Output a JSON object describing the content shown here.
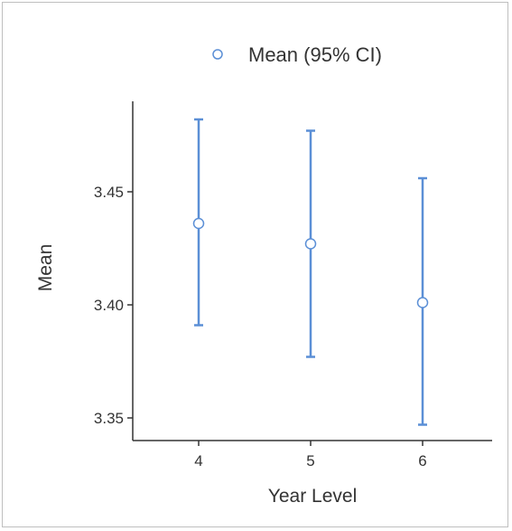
{
  "chart_data": {
    "type": "scatter",
    "xlabel": "Year Level",
    "ylabel": "Mean",
    "categories": [
      "4",
      "5",
      "6"
    ],
    "ylim": [
      3.34,
      3.49
    ],
    "yticks": [
      "3.35",
      "3.40",
      "3.45"
    ],
    "legend": {
      "position": "top",
      "label": "Mean (95% CI)"
    },
    "grid": false,
    "series": [
      {
        "name": "Mean (95% CI)",
        "color": "#5b8fd6",
        "points": [
          {
            "x": "4",
            "mean": 3.436,
            "lower": 3.391,
            "upper": 3.482
          },
          {
            "x": "5",
            "mean": 3.427,
            "lower": 3.377,
            "upper": 3.477
          },
          {
            "x": "6",
            "mean": 3.401,
            "lower": 3.347,
            "upper": 3.456
          }
        ]
      }
    ]
  }
}
